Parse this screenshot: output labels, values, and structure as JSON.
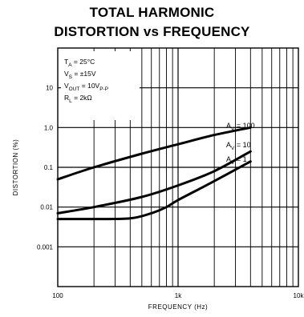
{
  "chart_data": {
    "type": "line",
    "title_line1": "TOTAL HARMONIC",
    "title_line2": "DISTORTION vs FREQUENCY",
    "xlabel": "FREQUENCY (Hz)",
    "ylabel": "DISTORTION (%)",
    "x_scale": "log",
    "y_scale": "log",
    "xlim": [
      100,
      10000
    ],
    "ylim": [
      0.0001,
      100
    ],
    "x_ticks": [
      {
        "value": 100,
        "label": "100"
      },
      {
        "value": 1000,
        "label": "1k"
      },
      {
        "value": 10000,
        "label": "10k"
      }
    ],
    "y_ticks": [
      {
        "value": 10,
        "label": "10"
      },
      {
        "value": 1,
        "label": "1.0"
      },
      {
        "value": 0.1,
        "label": "0.1"
      },
      {
        "value": 0.01,
        "label": "0.01"
      },
      {
        "value": 0.001,
        "label": "0.001"
      }
    ],
    "grid": true,
    "conditions": [
      "T_A = 25°C",
      "V_S = ±15V",
      "V_OUT = 10V_P-P",
      "R_L = 2kΩ"
    ],
    "series": [
      {
        "name": "A_V = 100",
        "x": [
          100,
          200,
          500,
          1000,
          2000,
          4000
        ],
        "y": [
          0.05,
          0.1,
          0.22,
          0.38,
          0.65,
          1.0
        ]
      },
      {
        "name": "A_V = 10",
        "x": [
          100,
          200,
          500,
          1000,
          2000,
          4000
        ],
        "y": [
          0.007,
          0.01,
          0.018,
          0.035,
          0.08,
          0.25
        ]
      },
      {
        "name": "A_V = 1",
        "x": [
          100,
          200,
          400,
          600,
          800,
          1000,
          2000,
          4000
        ],
        "y": [
          0.005,
          0.005,
          0.0052,
          0.007,
          0.01,
          0.015,
          0.045,
          0.14
        ]
      }
    ],
    "series_labels": [
      {
        "main": "A",
        "sub": "V",
        "rest": " = 100"
      },
      {
        "main": "A",
        "sub": "V",
        "rest": " = 10"
      },
      {
        "main": "A",
        "sub": "V",
        "rest": " = 1"
      }
    ]
  }
}
